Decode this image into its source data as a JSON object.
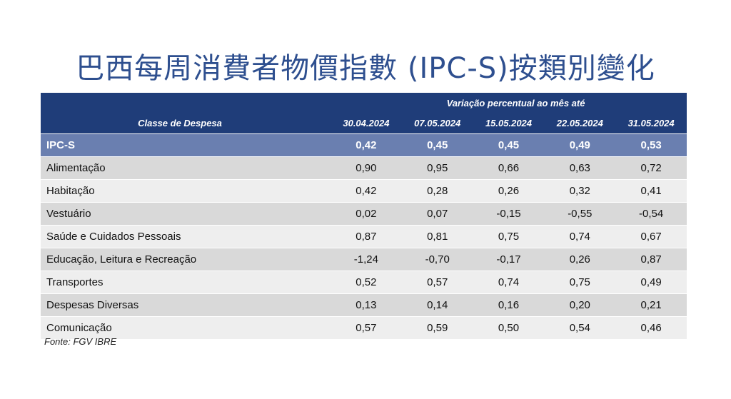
{
  "title": "巴西每周消費者物價指數 (IPC-S)按類別變化",
  "table": {
    "header_group": "Variação percentual ao mês até",
    "first_column_header": "Classe de Despesa",
    "dates": [
      "30.04.2024",
      "07.05.2024",
      "15.05.2024",
      "22.05.2024",
      "31.05.2024"
    ],
    "rows": [
      {
        "label": "IPC-S",
        "values": [
          "0,42",
          "0,45",
          "0,45",
          "0,49",
          "0,53"
        ]
      },
      {
        "label": "Alimentação",
        "values": [
          "0,90",
          "0,95",
          "0,66",
          "0,63",
          "0,72"
        ]
      },
      {
        "label": "Habitação",
        "values": [
          "0,42",
          "0,28",
          "0,26",
          "0,32",
          "0,41"
        ]
      },
      {
        "label": "Vestuário",
        "values": [
          "0,02",
          "0,07",
          "-0,15",
          "-0,55",
          "-0,54"
        ]
      },
      {
        "label": "Saúde e Cuidados Pessoais",
        "values": [
          "0,87",
          "0,81",
          "0,75",
          "0,74",
          "0,67"
        ]
      },
      {
        "label": "Educação, Leitura e Recreação",
        "values": [
          "-1,24",
          "-0,70",
          "-0,17",
          "0,26",
          "0,87"
        ]
      },
      {
        "label": "Transportes",
        "values": [
          "0,52",
          "0,57",
          "0,74",
          "0,75",
          "0,49"
        ]
      },
      {
        "label": "Despesas Diversas",
        "values": [
          "0,13",
          "0,14",
          "0,16",
          "0,20",
          "0,21"
        ]
      },
      {
        "label": "Comunicação",
        "values": [
          "0,57",
          "0,59",
          "0,50",
          "0,54",
          "0,46"
        ]
      }
    ]
  },
  "source": "Fonte: FGV IBRE",
  "chart_data": {
    "type": "table",
    "title": "巴西每周消費者物價指數 (IPC-S)按類別變化",
    "columns": [
      "Classe de Despesa",
      "30.04.2024",
      "07.05.2024",
      "15.05.2024",
      "22.05.2024",
      "31.05.2024"
    ],
    "rows": [
      [
        "IPC-S",
        0.42,
        0.45,
        0.45,
        0.49,
        0.53
      ],
      [
        "Alimentação",
        0.9,
        0.95,
        0.66,
        0.63,
        0.72
      ],
      [
        "Habitação",
        0.42,
        0.28,
        0.26,
        0.32,
        0.41
      ],
      [
        "Vestuário",
        0.02,
        0.07,
        -0.15,
        -0.55,
        -0.54
      ],
      [
        "Saúde e Cuidados Pessoais",
        0.87,
        0.81,
        0.75,
        0.74,
        0.67
      ],
      [
        "Educação, Leitura e Recreação",
        -1.24,
        -0.7,
        -0.17,
        0.26,
        0.87
      ],
      [
        "Transportes",
        0.52,
        0.57,
        0.74,
        0.75,
        0.49
      ],
      [
        "Despesas Diversas",
        0.13,
        0.14,
        0.16,
        0.2,
        0.21
      ],
      [
        "Comunicação",
        0.57,
        0.59,
        0.5,
        0.54,
        0.46
      ]
    ]
  },
  "colors": {
    "title": "#2e4f8f",
    "header_bg": "#1f3d79",
    "highlight_row_bg": "#6a7fb0",
    "row_odd_bg": "#d9d9d9",
    "row_even_bg": "#eeeeee"
  }
}
